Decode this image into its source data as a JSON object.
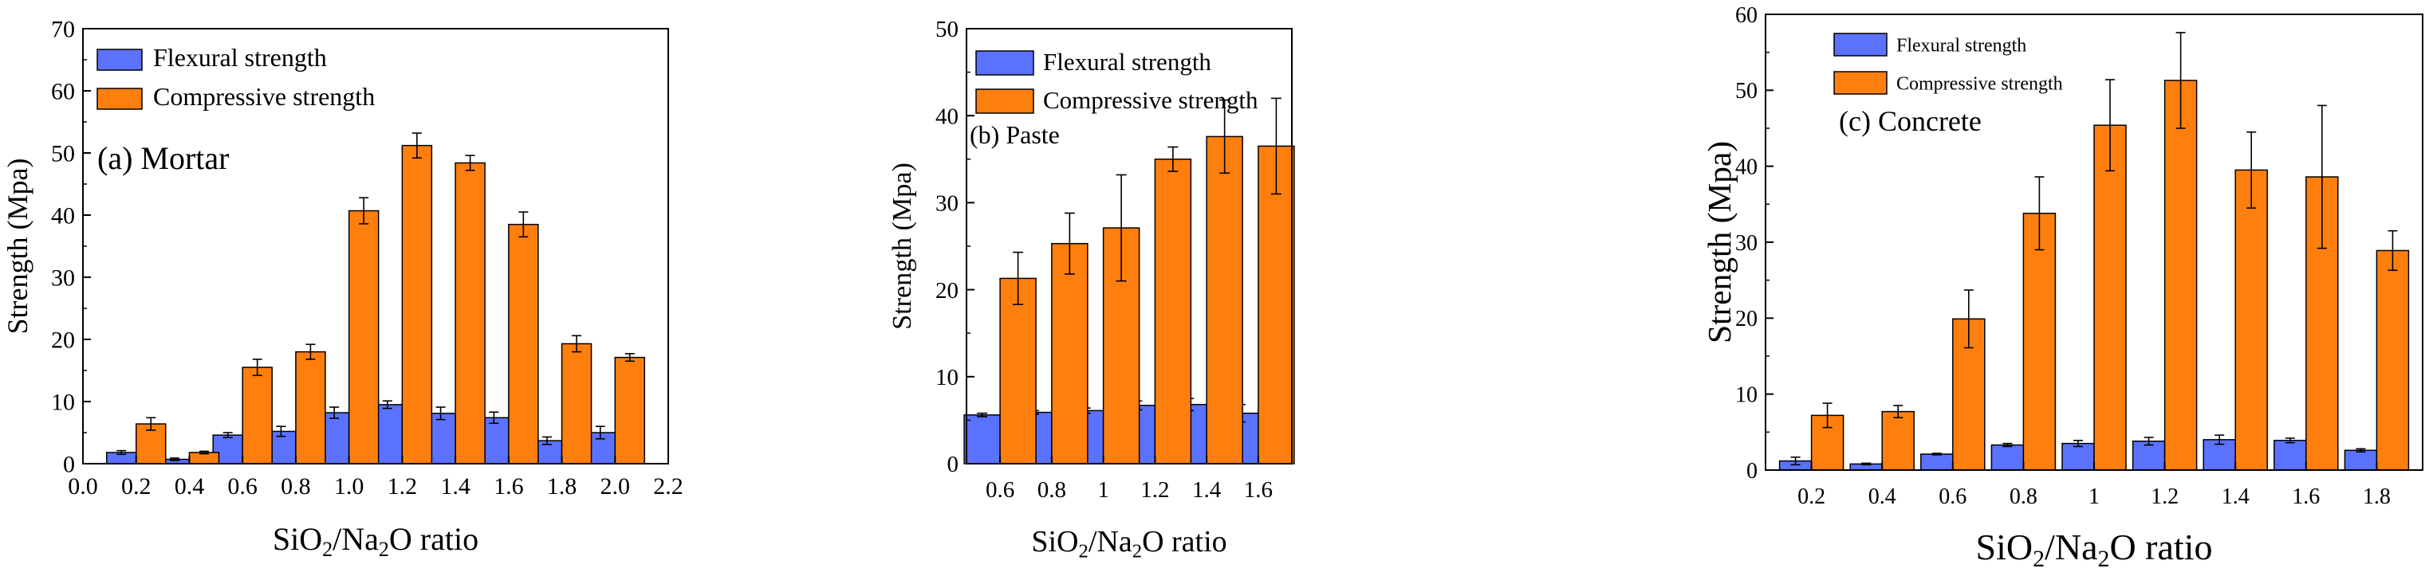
{
  "colors": {
    "flexural": "#5b72ff",
    "compressive": "#ff7f0e",
    "axis": "#000000"
  },
  "chart_data": [
    {
      "type": "bar",
      "panel_label": "(a) Mortar",
      "xlabel_main": "SiO",
      "xlabel_sub1": "2",
      "xlabel_mid": "/Na",
      "xlabel_sub2": "2",
      "xlabel_tail": "O  ratio",
      "ylabel": "Strength (Mpa)",
      "x_axis": "numeric",
      "xlim": [
        0.0,
        2.2
      ],
      "xticks": [
        "0.0",
        "0.2",
        "0.4",
        "0.6",
        "0.8",
        "1.0",
        "1.2",
        "1.4",
        "1.6",
        "1.8",
        "2.0",
        "2.2"
      ],
      "ylim": [
        0,
        70
      ],
      "yticks": [
        "0",
        "10",
        "20",
        "30",
        "40",
        "50",
        "60",
        "70"
      ],
      "bar_width": 0.085,
      "legend": [
        "Flexural strength",
        "Compressive strength"
      ],
      "x": [
        0.2,
        0.4,
        0.6,
        0.8,
        1.0,
        1.2,
        1.4,
        1.6,
        1.8,
        2.0
      ],
      "series": [
        {
          "name": "Flexural strength",
          "values": [
            1.8,
            0.7,
            4.6,
            5.2,
            8.2,
            9.5,
            8.1,
            7.4,
            3.7,
            5.0
          ],
          "errors": [
            0.3,
            0.2,
            0.4,
            0.8,
            0.9,
            0.6,
            1.0,
            0.9,
            0.6,
            1.0
          ]
        },
        {
          "name": "Compressive strength",
          "values": [
            6.4,
            1.8,
            15.5,
            18.0,
            40.7,
            51.2,
            48.4,
            38.5,
            19.3,
            17.1
          ],
          "errors": [
            1.0,
            0.2,
            1.3,
            1.2,
            2.1,
            2.0,
            1.2,
            2.0,
            1.3,
            0.6
          ]
        }
      ]
    },
    {
      "type": "bar",
      "panel_label": "(b) Paste",
      "xlabel_main": "SiO",
      "xlabel_sub1": "2",
      "xlabel_mid": "/Na",
      "xlabel_sub2": "2",
      "xlabel_tail": "O ratio",
      "ylabel": "Strength (Mpa)",
      "x_axis": "categorical",
      "categories": [
        "0.6",
        "0.8",
        "1",
        "1.2",
        "1.4",
        "1.6"
      ],
      "ylim": [
        0,
        50
      ],
      "yticks": [
        "0",
        "10",
        "20",
        "30",
        "40",
        "50"
      ],
      "legend": [
        "Flexural strength",
        "Compressive strength"
      ],
      "series": [
        {
          "name": "Flexural strength",
          "values": [
            5.6,
            5.9,
            6.1,
            6.7,
            6.8,
            5.8
          ],
          "errors": [
            0.2,
            0.2,
            0.3,
            0.5,
            0.7,
            1.0
          ]
        },
        {
          "name": "Compressive strength",
          "values": [
            21.3,
            25.3,
            27.1,
            35.0,
            37.6,
            36.5
          ],
          "errors": [
            3.0,
            3.5,
            6.1,
            1.4,
            4.2,
            5.5
          ]
        }
      ]
    },
    {
      "type": "bar",
      "panel_label": "(c) Concrete",
      "xlabel_main": "SiO",
      "xlabel_sub1": "2",
      "xlabel_mid": "/Na",
      "xlabel_sub2": "2",
      "xlabel_tail": "O ratio",
      "ylabel": "Strength (Mpa)",
      "x_axis": "categorical",
      "categories": [
        "0.2",
        "0.4",
        "0.6",
        "0.8",
        "1",
        "1.2",
        "1.4",
        "1.6",
        "1.8"
      ],
      "ylim": [
        0,
        60
      ],
      "yticks": [
        "0",
        "10",
        "20",
        "30",
        "40",
        "50",
        "60"
      ],
      "legend": [
        "Flexural strength",
        "Compressive strength"
      ],
      "series": [
        {
          "name": "Flexural strength",
          "values": [
            1.2,
            0.8,
            2.1,
            3.3,
            3.5,
            3.8,
            4.0,
            3.9,
            2.6
          ],
          "errors": [
            0.5,
            0.1,
            0.1,
            0.2,
            0.4,
            0.5,
            0.6,
            0.3,
            0.2
          ]
        },
        {
          "name": "Compressive strength",
          "values": [
            7.2,
            7.7,
            19.9,
            33.8,
            45.4,
            51.3,
            39.5,
            38.6,
            28.9
          ],
          "errors": [
            1.6,
            0.8,
            3.8,
            4.8,
            6.0,
            6.3,
            5.0,
            9.4,
            2.6
          ]
        }
      ]
    }
  ]
}
